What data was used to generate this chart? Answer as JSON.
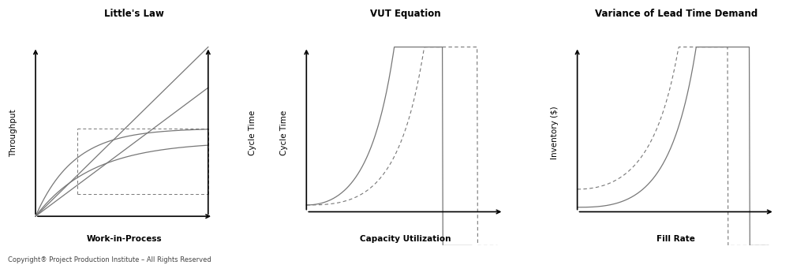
{
  "title1": "Little's Law",
  "title2": "VUT Equation",
  "title3": "Variance of Lead Time Demand",
  "xlabel1": "Work-in-Process",
  "ylabel1": "Throughput",
  "ylabel1r": "Cycle Time",
  "xlabel2": "Capacity Utilization",
  "ylabel2": "Cycle Time",
  "xlabel3": "Fill Rate",
  "ylabel3": "Inventory ($)",
  "copyright": "Copyright® Project Production Institute – All Rights Reserved",
  "line_color": "#777777",
  "dashed_color": "#777777",
  "title_fontsize": 8.5,
  "label_fontsize": 7.5,
  "copyright_fontsize": 6
}
